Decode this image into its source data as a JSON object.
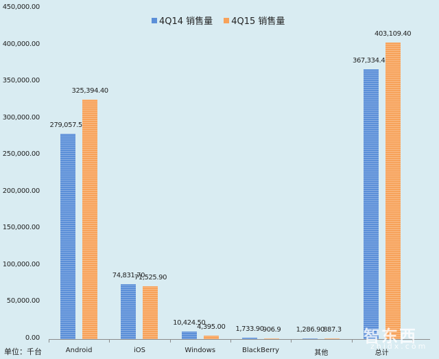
{
  "chart_data": {
    "type": "bar",
    "title": "",
    "categories": [
      "Android",
      "iOS",
      "Windows",
      "BlackBerry",
      "其他",
      "总计"
    ],
    "series": [
      {
        "name": "4Q14 销售量",
        "color": "#5b8fd8",
        "values": [
          279057.5,
          74831.7,
          10424.5,
          1733.9,
          1286.9,
          367334.4
        ],
        "labels": [
          "279,057.50",
          "74,831.70",
          "10,424.50",
          "1,733.90",
          "1,286.90",
          "367,334.40"
        ]
      },
      {
        "name": "4Q15 销售量",
        "color": "#f7a25a",
        "values": [
          325394.4,
          71525.9,
          4395.0,
          906.9,
          887.3,
          403109.4
        ],
        "labels": [
          "325,394.40",
          "71,525.90",
          "4,395.00",
          "906.9",
          "887.3",
          "403,109.40"
        ]
      }
    ],
    "xlabel": "",
    "ylabel": "单位：千台",
    "ylim": [
      0,
      450000
    ],
    "yticks": [
      "0.00",
      "50,000.00",
      "100,000.00",
      "150,000.00",
      "200,000.00",
      "250,000.00",
      "300,000.00",
      "350,000.00",
      "400,000.00",
      "450,000.00"
    ],
    "grid": false,
    "legend_position": "top"
  },
  "unit_label": "单位：千台",
  "legend": [
    {
      "label": "4Q14 销售量",
      "color": "#5b8fd8"
    },
    {
      "label": "4Q15 销售量",
      "color": "#f7a25a"
    }
  ],
  "watermark": {
    "text": "智东西",
    "sub": "zhidx.com"
  }
}
